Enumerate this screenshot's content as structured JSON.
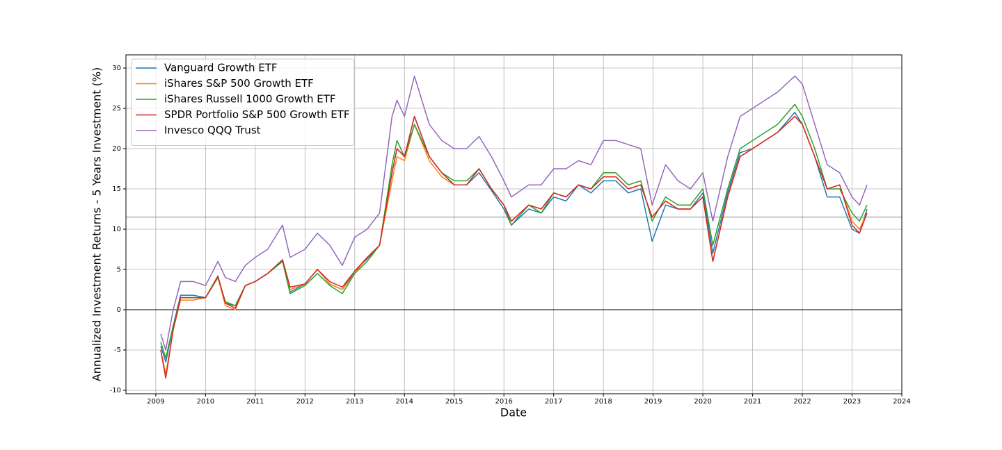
{
  "chart_data": {
    "type": "line",
    "xlabel": "Date",
    "ylabel": "Annualized Investment Returns - 5 Years Investment (%)",
    "x": [
      2009.1,
      2009.2,
      2009.35,
      2009.5,
      2009.75,
      2010.0,
      2010.25,
      2010.4,
      2010.6,
      2010.8,
      2011.0,
      2011.25,
      2011.55,
      2011.7,
      2012.0,
      2012.25,
      2012.5,
      2012.75,
      2013.0,
      2013.25,
      2013.5,
      2013.75,
      2013.85,
      2014.0,
      2014.2,
      2014.5,
      2014.75,
      2015.0,
      2015.25,
      2015.5,
      2015.75,
      2016.0,
      2016.15,
      2016.5,
      2016.75,
      2017.0,
      2017.25,
      2017.5,
      2017.75,
      2018.0,
      2018.25,
      2018.5,
      2018.75,
      2018.98,
      2019.25,
      2019.5,
      2019.75,
      2020.0,
      2020.2,
      2020.5,
      2020.75,
      2021.0,
      2021.25,
      2021.5,
      2021.85,
      2022.0,
      2022.25,
      2022.5,
      2022.75,
      2023.0,
      2023.15,
      2023.3
    ],
    "series": [
      {
        "name": "Vanguard Growth ETF",
        "color": "#1f77b4",
        "values": [
          -4.5,
          -6.5,
          -2,
          1.8,
          1.8,
          1.5,
          4,
          0.8,
          0.5,
          3,
          3.5,
          4.5,
          6.2,
          2.2,
          3.2,
          5,
          3.2,
          2.5,
          4.8,
          6.3,
          8,
          17,
          20,
          19,
          24,
          19,
          17,
          15.5,
          15.5,
          17,
          14.8,
          12.5,
          10.5,
          12.5,
          12,
          14,
          13.5,
          15.5,
          14.5,
          16,
          16,
          14.5,
          15,
          8.5,
          13,
          12.5,
          12.5,
          14.5,
          7,
          14.5,
          19.5,
          20,
          21,
          22,
          24.5,
          23,
          19,
          14,
          14,
          10,
          9.5,
          12.5
        ]
      },
      {
        "name": "iShares S&P 500 Growth ETF",
        "color": "#ff7f0e",
        "values": [
          -5,
          -8,
          -2.5,
          1.2,
          1.2,
          1.5,
          4,
          0.5,
          0,
          3,
          3.5,
          4.5,
          6,
          2.5,
          3.2,
          5,
          3.2,
          2.5,
          4.5,
          6.5,
          8,
          16,
          19,
          18.5,
          23,
          18.5,
          16.5,
          15.5,
          15.5,
          17.5,
          15,
          13,
          11,
          13,
          12.5,
          14.5,
          14,
          15.5,
          15,
          16.5,
          16.5,
          15,
          15.5,
          11.5,
          13.5,
          12.5,
          12.5,
          14,
          6,
          14,
          19,
          20,
          21,
          22,
          24,
          23,
          19,
          15,
          15.5,
          11,
          10,
          12
        ]
      },
      {
        "name": "iShares Russell 1000 Growth ETF",
        "color": "#2ca02c",
        "values": [
          -4,
          -6,
          -2,
          1.5,
          1.5,
          1.5,
          4,
          1,
          0.5,
          3,
          3.5,
          4.5,
          6,
          2,
          3,
          4.5,
          3,
          2,
          4.5,
          6,
          8,
          18,
          21,
          19,
          23,
          19,
          17,
          16,
          16,
          17.5,
          15,
          13,
          10.5,
          13,
          12,
          14.5,
          14,
          15.5,
          15,
          17,
          17,
          15.5,
          16,
          11,
          14,
          13,
          13,
          15,
          8,
          15,
          20,
          21,
          22,
          23,
          25.5,
          24,
          20,
          15,
          15,
          12,
          11,
          13
        ]
      },
      {
        "name": "SPDR Portfolio S&P 500 Growth ETF",
        "color": "#d62728",
        "values": [
          -5,
          -8.5,
          -2.5,
          1.5,
          1.5,
          1.5,
          4.2,
          0.8,
          0.2,
          3,
          3.5,
          4.5,
          6.2,
          2.8,
          3.2,
          5,
          3.5,
          2.8,
          4.8,
          6.5,
          8,
          17,
          20,
          19,
          24,
          19,
          17,
          15.5,
          15.5,
          17.5,
          15,
          13,
          11,
          13,
          12.5,
          14.5,
          14,
          15.5,
          15,
          16.5,
          16.5,
          15,
          15.5,
          11.5,
          13.5,
          12.5,
          12.5,
          14,
          6,
          14,
          19,
          20,
          21,
          22,
          24,
          23,
          19,
          15,
          15.5,
          10.5,
          9.5,
          12
        ]
      },
      {
        "name": "Invesco QQQ Trust",
        "color": "#9467bd",
        "values": [
          -3,
          -5,
          0,
          3.5,
          3.5,
          3,
          6,
          4,
          3.5,
          5.5,
          6.5,
          7.5,
          10.5,
          6.5,
          7.5,
          9.5,
          8,
          5.5,
          9,
          10,
          12,
          24,
          26,
          24,
          29,
          23,
          21,
          20,
          20,
          21.5,
          19,
          16,
          14,
          15.5,
          15.5,
          17.5,
          17.5,
          18.5,
          18,
          21,
          21,
          20.5,
          20,
          13,
          18,
          16,
          15,
          17,
          11,
          19,
          24,
          25,
          26,
          27,
          29,
          28,
          23,
          18,
          17,
          14,
          13,
          15.5
        ]
      }
    ],
    "reference_lines": [
      {
        "value": 0,
        "color": "#000000"
      },
      {
        "value": 11.5,
        "color": "#808080"
      }
    ],
    "xlim": [
      2008.4,
      2024
    ],
    "xticks": [
      2009,
      2010,
      2011,
      2012,
      2013,
      2014,
      2015,
      2016,
      2017,
      2018,
      2019,
      2020,
      2021,
      2022,
      2023,
      2024
    ],
    "ylim": [
      -10.43,
      31.64
    ],
    "yticks": [
      -10,
      -5,
      0,
      5,
      10,
      15,
      20,
      25,
      30
    ],
    "grid": true,
    "legend": "upper-left"
  }
}
